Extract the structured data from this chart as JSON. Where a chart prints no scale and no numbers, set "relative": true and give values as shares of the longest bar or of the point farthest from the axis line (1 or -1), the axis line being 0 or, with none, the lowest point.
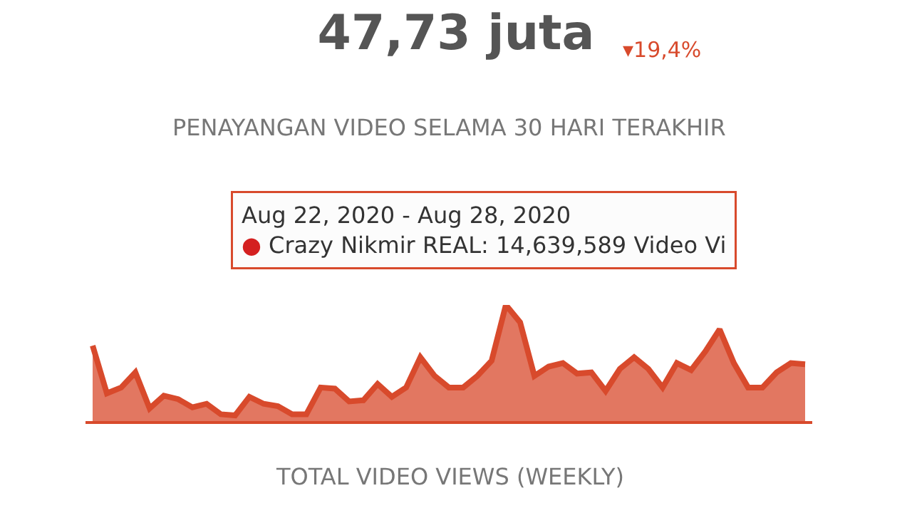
{
  "chart_data": {
    "type": "area",
    "relative": true,
    "title": "47,73 juta",
    "subtitle": "PENAYANGAN VIDEO SELAMA 30 HARI TERAKHIR",
    "xlabel": "TOTAL VIDEO VIEWS (WEEKLY)",
    "annotations": [
      "▾19,4%",
      "Aug 22, 2020 - Aug 28, 2020",
      "● Crazy Nikmir REAL: 14,639,589 Video Vi"
    ],
    "categories": [
      null,
      null,
      null,
      null,
      null,
      null,
      null,
      null,
      null,
      null,
      null,
      null,
      null,
      null,
      null,
      null,
      null,
      null,
      null,
      null,
      null,
      null,
      null,
      null,
      null,
      null,
      null,
      null,
      null,
      null,
      null,
      null,
      null,
      null,
      null,
      null,
      null,
      null,
      null,
      null,
      null,
      null,
      null,
      null,
      null,
      null,
      null,
      null,
      null,
      null,
      null
    ],
    "series": [
      {
        "color": "#d84a2c",
        "values": [
          0.65,
          0.24,
          0.29,
          0.42,
          0.11,
          0.22,
          0.19,
          0.12,
          0.15,
          0.06,
          0.05,
          0.21,
          0.15,
          0.13,
          0.06,
          0.06,
          0.29,
          0.28,
          0.17,
          0.18,
          0.32,
          0.21,
          0.29,
          0.55,
          0.39,
          0.29,
          0.29,
          0.39,
          0.52,
          1,
          0.85,
          0.39,
          0.47,
          0.5,
          0.41,
          0.42,
          0.26,
          0.45,
          0.55,
          0.45,
          0.29,
          0.5,
          0.44,
          0.6,
          0.79,
          0.5,
          0.29,
          0.29,
          0.42,
          0.5,
          0.49
        ]
      }
    ],
    "legend": false,
    "marker": "none"
  }
}
